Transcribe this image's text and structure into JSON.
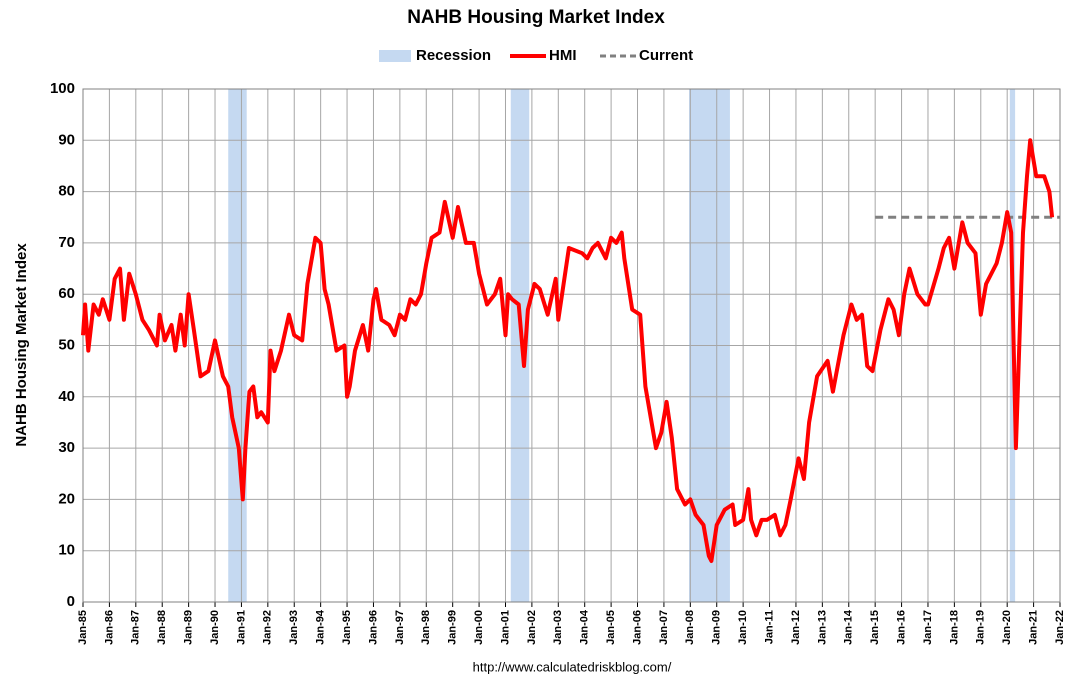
{
  "chart_data": {
    "type": "line",
    "title": "NAHB Housing Market Index",
    "ylabel": "NAHB Housing Market Index",
    "source": "http://www.calculatedriskblog.com/",
    "grid": true,
    "x": [
      1985.0,
      1985.08,
      1985.2,
      1985.4,
      1985.6,
      1985.75,
      1986.0,
      1986.2,
      1986.4,
      1986.55,
      1986.75,
      1987.0,
      1987.25,
      1987.5,
      1987.8,
      1987.9,
      1988.1,
      1988.35,
      1988.5,
      1988.7,
      1988.85,
      1989.0,
      1989.2,
      1989.45,
      1989.75,
      1990.0,
      1990.3,
      1990.5,
      1990.65,
      1990.9,
      1991.05,
      1991.15,
      1991.3,
      1991.45,
      1991.6,
      1991.75,
      1992.0,
      1992.1,
      1992.25,
      1992.5,
      1992.8,
      1993.0,
      1993.3,
      1993.5,
      1993.8,
      1994.0,
      1994.15,
      1994.3,
      1994.6,
      1994.9,
      1995.0,
      1995.1,
      1995.3,
      1995.6,
      1995.8,
      1996.0,
      1996.1,
      1996.3,
      1996.6,
      1996.8,
      1997.0,
      1997.2,
      1997.4,
      1997.6,
      1997.8,
      1998.0,
      1998.2,
      1998.5,
      1998.7,
      1999.0,
      1999.2,
      1999.5,
      1999.8,
      2000.0,
      2000.3,
      2000.6,
      2000.8,
      2001.0,
      2001.1,
      2001.25,
      2001.5,
      2001.7,
      2001.85,
      2002.1,
      2002.3,
      2002.6,
      2002.9,
      2003.0,
      2003.2,
      2003.4,
      2003.9,
      2004.1,
      2004.3,
      2004.5,
      2004.8,
      2005.0,
      2005.2,
      2005.4,
      2005.5,
      2005.8,
      2006.1,
      2006.3,
      2006.7,
      2006.9,
      2007.1,
      2007.3,
      2007.5,
      2007.8,
      2008.0,
      2008.2,
      2008.5,
      2008.7,
      2008.8,
      2009.0,
      2009.3,
      2009.6,
      2009.7,
      2010.0,
      2010.2,
      2010.3,
      2010.5,
      2010.7,
      2010.9,
      2011.2,
      2011.4,
      2011.6,
      2011.8,
      2012.1,
      2012.3,
      2012.5,
      2012.8,
      2013.2,
      2013.4,
      2013.8,
      2014.1,
      2014.3,
      2014.5,
      2014.7,
      2014.9,
      2015.2,
      2015.5,
      2015.7,
      2015.9,
      2016.1,
      2016.3,
      2016.6,
      2016.9,
      2017.0,
      2017.4,
      2017.6,
      2017.8,
      2018.0,
      2018.3,
      2018.5,
      2018.8,
      2019.0,
      2019.2,
      2019.6,
      2019.8,
      2020.0,
      2020.15,
      2020.33,
      2020.6,
      2020.75,
      2020.87,
      2021.1,
      2021.4,
      2021.6,
      2021.7
    ],
    "series": [
      {
        "name": "HMI",
        "color": "#ff0000",
        "values": [
          52,
          58,
          49,
          58,
          56,
          59,
          55,
          63,
          65,
          55,
          64,
          60,
          55,
          53,
          50,
          56,
          51,
          54,
          49,
          56,
          50,
          60,
          53,
          44,
          45,
          51,
          44,
          42,
          36,
          30,
          20,
          30,
          41,
          42,
          36,
          37,
          35,
          49,
          45,
          49,
          56,
          52,
          51,
          62,
          71,
          70,
          61,
          58,
          49,
          50,
          40,
          42,
          49,
          54,
          49,
          59,
          61,
          55,
          54,
          52,
          56,
          55,
          59,
          58,
          60,
          66,
          71,
          72,
          78,
          71,
          77,
          70,
          70,
          64,
          58,
          60,
          63,
          52,
          60,
          59,
          58,
          46,
          57,
          62,
          61,
          56,
          63,
          55,
          62,
          69,
          68,
          67,
          69,
          70,
          67,
          71,
          70,
          72,
          67,
          57,
          56,
          42,
          30,
          33,
          39,
          32,
          22,
          19,
          20,
          17,
          15,
          9,
          8,
          15,
          18,
          19,
          15,
          16,
          22,
          16,
          13,
          16,
          16,
          17,
          13,
          15,
          20,
          28,
          24,
          35,
          44,
          47,
          41,
          52,
          58,
          55,
          56,
          46,
          45,
          53,
          59,
          57,
          52,
          60,
          65,
          60,
          58,
          58,
          65,
          69,
          71,
          65,
          74,
          70,
          68,
          56,
          62,
          66,
          70,
          76,
          72,
          30,
          72,
          83,
          90,
          83,
          83,
          80,
          75
        ]
      }
    ],
    "recession": {
      "name": "Recession",
      "color": "#c5d9f1",
      "ranges": [
        [
          1990.5,
          1991.2
        ],
        [
          2001.2,
          2001.9
        ],
        [
          2007.95,
          2009.5
        ],
        [
          2020.1,
          2020.3
        ]
      ]
    },
    "current": {
      "name": "Current",
      "color": "#808080",
      "start": 2015,
      "value": 75
    },
    "xlim": [
      1985,
      2022
    ],
    "xticks": [
      {
        "value": 1985,
        "label": "Jan-85"
      },
      {
        "value": 1986,
        "label": "Jan-86"
      },
      {
        "value": 1987,
        "label": "Jan-87"
      },
      {
        "value": 1988,
        "label": "Jan-88"
      },
      {
        "value": 1989,
        "label": "Jan-89"
      },
      {
        "value": 1990,
        "label": "Jan-90"
      },
      {
        "value": 1991,
        "label": "Jan-91"
      },
      {
        "value": 1992,
        "label": "Jan-92"
      },
      {
        "value": 1993,
        "label": "Jan-93"
      },
      {
        "value": 1994,
        "label": "Jan-94"
      },
      {
        "value": 1995,
        "label": "Jan-95"
      },
      {
        "value": 1996,
        "label": "Jan-96"
      },
      {
        "value": 1997,
        "label": "Jan-97"
      },
      {
        "value": 1998,
        "label": "Jan-98"
      },
      {
        "value": 1999,
        "label": "Jan-99"
      },
      {
        "value": 2000,
        "label": "Jan-00"
      },
      {
        "value": 2001,
        "label": "Jan-01"
      },
      {
        "value": 2002,
        "label": "Jan-02"
      },
      {
        "value": 2003,
        "label": "Jan-03"
      },
      {
        "value": 2004,
        "label": "Jan-04"
      },
      {
        "value": 2005,
        "label": "Jan-05"
      },
      {
        "value": 2006,
        "label": "Jan-06"
      },
      {
        "value": 2007,
        "label": "Jan-07"
      },
      {
        "value": 2008,
        "label": "Jan-08"
      },
      {
        "value": 2009,
        "label": "Jan-09"
      },
      {
        "value": 2010,
        "label": "Jan-10"
      },
      {
        "value": 2011,
        "label": "Jan-11"
      },
      {
        "value": 2012,
        "label": "Jan-12"
      },
      {
        "value": 2013,
        "label": "Jan-13"
      },
      {
        "value": 2014,
        "label": "Jan-14"
      },
      {
        "value": 2015,
        "label": "Jan-15"
      },
      {
        "value": 2016,
        "label": "Jan-16"
      },
      {
        "value": 2017,
        "label": "Jan-17"
      },
      {
        "value": 2018,
        "label": "Jan-18"
      },
      {
        "value": 2019,
        "label": "Jan-19"
      },
      {
        "value": 2020,
        "label": "Jan-20"
      },
      {
        "value": 2021,
        "label": "Jan-21"
      },
      {
        "value": 2022,
        "label": "Jan-22"
      }
    ],
    "ylim": [
      0,
      100
    ],
    "yticks": [
      0,
      10,
      20,
      30,
      40,
      50,
      60,
      70,
      80,
      90,
      100
    ]
  }
}
